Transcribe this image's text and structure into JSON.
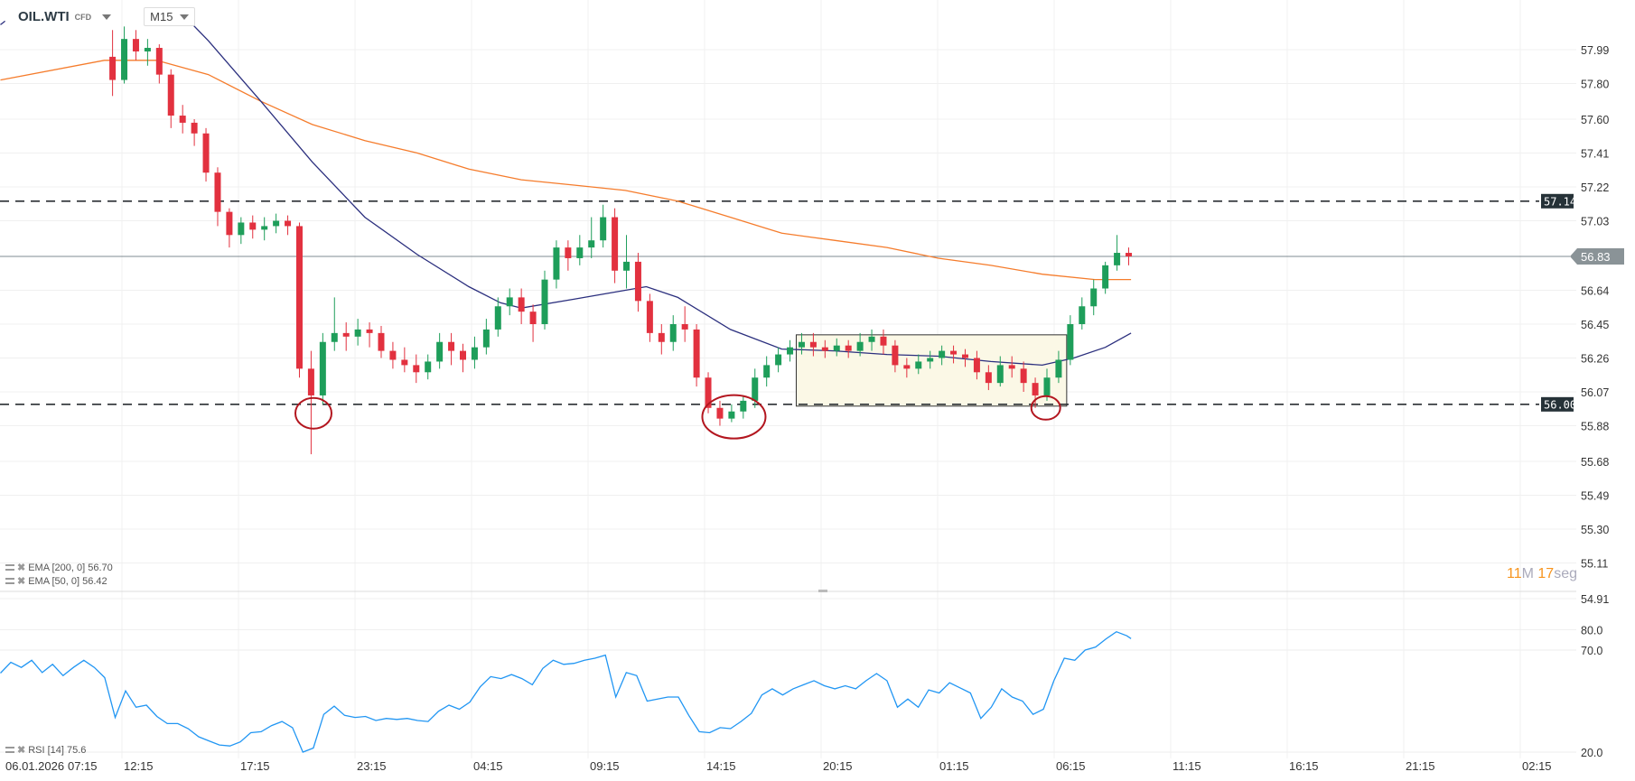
{
  "header": {
    "symbol": "OIL.WTI",
    "instrument_type": "CFD",
    "timeframe": "M15"
  },
  "legend": {
    "ema200": {
      "label": "EMA [200, 0] 56.70",
      "color": "#f57c2c"
    },
    "ema50": {
      "label": "EMA [50, 0] 56.42",
      "color": "#2b2f7e"
    },
    "rsi": {
      "label": "RSI [14] 75.6",
      "color": "#2196f3"
    }
  },
  "timer": {
    "minutes": "11",
    "minutes_unit": "M",
    "seconds": "17",
    "seconds_unit": "seg"
  },
  "colors": {
    "up": "#1e9e5a",
    "down": "#e2313f",
    "annotation": "#b3161f",
    "box_fill": "#fbf8e6"
  },
  "chart_data": [
    {
      "type": "candlestick",
      "title": "",
      "price_axis_ticks": [
        "57.99",
        "57.80",
        "57.60",
        "57.41",
        "57.22",
        "57.03",
        "56.64",
        "56.45",
        "56.26",
        "56.07",
        "55.88",
        "55.68",
        "55.49",
        "55.30",
        "55.11",
        "54.91"
      ],
      "time_axis_ticks": [
        "06.01.2026",
        "07:15",
        "12:15",
        "17:15",
        "23:15",
        "04:15",
        "09:15",
        "14:15",
        "20:15",
        "01:15",
        "06:15",
        "11:15",
        "16:15",
        "21:15",
        "02:15"
      ],
      "ylim": [
        54.91,
        58.22
      ],
      "grid": true,
      "levels": [
        {
          "value": 57.14,
          "label": "57.14",
          "style": "dashed"
        },
        {
          "value": 56.0,
          "label": "56.00",
          "style": "dashed"
        }
      ],
      "current_price": {
        "value": 56.83,
        "label": "56.83"
      },
      "range_box": {
        "from_bar": 59,
        "to_bar": 82,
        "high": 56.39,
        "low": 55.99
      },
      "candles_ohlc": [
        [
          57.95,
          58.1,
          57.73,
          57.82
        ],
        [
          57.82,
          58.12,
          57.8,
          58.05
        ],
        [
          58.05,
          58.1,
          57.93,
          57.98
        ],
        [
          57.98,
          58.05,
          57.9,
          58.0
        ],
        [
          58.0,
          58.02,
          57.8,
          57.85
        ],
        [
          57.85,
          57.88,
          57.55,
          57.62
        ],
        [
          57.62,
          57.68,
          57.52,
          57.58
        ],
        [
          57.58,
          57.6,
          57.45,
          57.52
        ],
        [
          57.52,
          57.55,
          57.25,
          57.3
        ],
        [
          57.3,
          57.33,
          57.0,
          57.08
        ],
        [
          57.08,
          57.1,
          56.88,
          56.95
        ],
        [
          56.95,
          57.05,
          56.9,
          57.02
        ],
        [
          57.02,
          57.06,
          56.93,
          56.98
        ],
        [
          56.98,
          57.05,
          56.92,
          57.0
        ],
        [
          57.0,
          57.07,
          56.96,
          57.03
        ],
        [
          57.03,
          57.06,
          56.95,
          57.0
        ],
        [
          57.0,
          57.02,
          56.15,
          56.2
        ],
        [
          56.2,
          56.3,
          55.72,
          56.05
        ],
        [
          56.05,
          56.4,
          56.0,
          56.35
        ],
        [
          56.35,
          56.6,
          56.3,
          56.4
        ],
        [
          56.4,
          56.46,
          56.3,
          56.38
        ],
        [
          56.38,
          56.48,
          56.33,
          56.42
        ],
        [
          56.42,
          56.46,
          56.32,
          56.4
        ],
        [
          56.4,
          56.44,
          56.26,
          56.3
        ],
        [
          56.3,
          56.35,
          56.2,
          56.25
        ],
        [
          56.25,
          56.32,
          56.18,
          56.22
        ],
        [
          56.22,
          56.28,
          56.12,
          56.18
        ],
        [
          56.18,
          56.28,
          56.14,
          56.24
        ],
        [
          56.24,
          56.4,
          56.2,
          56.35
        ],
        [
          56.35,
          56.4,
          56.22,
          56.3
        ],
        [
          56.3,
          56.34,
          56.18,
          56.25
        ],
        [
          56.25,
          56.38,
          56.2,
          56.32
        ],
        [
          56.32,
          56.48,
          56.28,
          56.42
        ],
        [
          56.42,
          56.6,
          56.38,
          56.55
        ],
        [
          56.55,
          56.65,
          56.5,
          56.6
        ],
        [
          56.6,
          56.65,
          56.45,
          56.52
        ],
        [
          56.52,
          56.56,
          56.35,
          56.45
        ],
        [
          56.45,
          56.75,
          56.42,
          56.7
        ],
        [
          56.7,
          56.92,
          56.65,
          56.88
        ],
        [
          56.88,
          56.92,
          56.75,
          56.82
        ],
        [
          56.82,
          56.95,
          56.78,
          56.88
        ],
        [
          56.88,
          57.05,
          56.82,
          56.92
        ],
        [
          56.92,
          57.12,
          56.88,
          57.05
        ],
        [
          57.05,
          57.1,
          56.68,
          56.75
        ],
        [
          56.75,
          56.95,
          56.65,
          56.8
        ],
        [
          56.8,
          56.85,
          56.52,
          56.58
        ],
        [
          56.58,
          56.62,
          56.35,
          56.4
        ],
        [
          56.4,
          56.45,
          56.28,
          56.35
        ],
        [
          56.35,
          56.5,
          56.3,
          56.45
        ],
        [
          56.45,
          56.55,
          56.35,
          56.42
        ],
        [
          56.42,
          56.45,
          56.1,
          56.15
        ],
        [
          56.15,
          56.18,
          55.95,
          55.98
        ],
        [
          55.98,
          56.02,
          55.88,
          55.92
        ],
        [
          55.92,
          56.0,
          55.9,
          55.96
        ],
        [
          55.96,
          56.05,
          55.92,
          56.02
        ],
        [
          56.02,
          56.2,
          55.98,
          56.15
        ],
        [
          56.15,
          56.27,
          56.1,
          56.22
        ],
        [
          56.22,
          56.32,
          56.18,
          56.28
        ],
        [
          56.28,
          56.36,
          56.24,
          56.32
        ],
        [
          56.32,
          56.4,
          56.28,
          56.35
        ],
        [
          56.35,
          56.4,
          56.27,
          56.32
        ],
        [
          56.32,
          56.36,
          56.26,
          56.3
        ],
        [
          56.3,
          56.37,
          56.27,
          56.33
        ],
        [
          56.33,
          56.36,
          56.26,
          56.3
        ],
        [
          56.3,
          56.4,
          56.27,
          56.35
        ],
        [
          56.35,
          56.42,
          56.3,
          56.38
        ],
        [
          56.38,
          56.42,
          56.28,
          56.33
        ],
        [
          56.33,
          56.36,
          56.18,
          56.22
        ],
        [
          56.22,
          56.26,
          56.15,
          56.2
        ],
        [
          56.2,
          56.28,
          56.17,
          56.24
        ],
        [
          56.24,
          56.3,
          56.2,
          56.26
        ],
        [
          56.26,
          56.33,
          56.22,
          56.3
        ],
        [
          56.3,
          56.33,
          56.23,
          56.28
        ],
        [
          56.28,
          56.31,
          56.21,
          56.26
        ],
        [
          56.26,
          56.3,
          56.14,
          56.18
        ],
        [
          56.18,
          56.22,
          56.08,
          56.12
        ],
        [
          56.12,
          56.27,
          56.1,
          56.22
        ],
        [
          56.22,
          56.27,
          56.15,
          56.2
        ],
        [
          56.2,
          56.24,
          56.07,
          56.12
        ],
        [
          56.12,
          56.15,
          55.98,
          56.05
        ],
        [
          56.05,
          56.2,
          56.02,
          56.15
        ],
        [
          56.15,
          56.3,
          56.12,
          56.25
        ],
        [
          56.25,
          56.5,
          56.22,
          56.45
        ],
        [
          56.45,
          56.6,
          56.42,
          56.55
        ],
        [
          56.55,
          56.7,
          56.5,
          56.65
        ],
        [
          56.65,
          56.8,
          56.62,
          56.78
        ],
        [
          56.78,
          56.95,
          56.75,
          56.85
        ],
        [
          56.85,
          56.88,
          56.78,
          56.83
        ]
      ],
      "ema200_points_bar_value": [
        [
          -9.6,
          57.82
        ],
        [
          -0.7,
          57.93
        ],
        [
          3.75,
          57.93
        ],
        [
          8.2,
          57.85
        ],
        [
          12.7,
          57.7
        ],
        [
          17.1,
          57.57
        ],
        [
          21.6,
          57.48
        ],
        [
          26.1,
          57.41
        ],
        [
          30.5,
          57.32
        ],
        [
          35,
          57.26
        ],
        [
          39.5,
          57.23
        ],
        [
          43.9,
          57.2
        ],
        [
          48.4,
          57.14
        ],
        [
          52.9,
          57.05
        ],
        [
          57.3,
          56.96
        ],
        [
          61.8,
          56.92
        ],
        [
          66.3,
          56.88
        ],
        [
          70.7,
          56.82
        ],
        [
          75.2,
          56.78
        ],
        [
          79.6,
          56.73
        ],
        [
          84.1,
          56.7
        ],
        [
          87.2,
          56.7
        ]
      ],
      "ema50_points_bar_value": [
        [
          -9.6,
          58.13
        ],
        [
          -9.2,
          58.15
        ],
        [
          null,
          null
        ],
        [
          5.98,
          58.19
        ],
        [
          8.2,
          58.04
        ],
        [
          12.7,
          57.7
        ],
        [
          17.1,
          57.36
        ],
        [
          21.6,
          57.05
        ],
        [
          26.1,
          56.84
        ],
        [
          30.5,
          56.66
        ],
        [
          33.2,
          56.57
        ],
        [
          35,
          56.54
        ],
        [
          39.5,
          56.59
        ],
        [
          43.9,
          56.64
        ],
        [
          45.7,
          56.66
        ],
        [
          48.4,
          56.6
        ],
        [
          52.9,
          56.42
        ],
        [
          57.3,
          56.31
        ],
        [
          61.8,
          56.3
        ],
        [
          66.3,
          56.28
        ],
        [
          70.7,
          56.27
        ],
        [
          75.2,
          56.24
        ],
        [
          79.6,
          56.22
        ],
        [
          82.3,
          56.26
        ],
        [
          85,
          56.32
        ],
        [
          87.2,
          56.4
        ]
      ]
    },
    {
      "type": "line",
      "title": "",
      "series_name": "RSI [14]",
      "ylim": [
        15,
        85
      ],
      "y_ticks": [
        "80.0",
        "70.0",
        "20.0"
      ],
      "grid": true,
      "start_bar": -9.6,
      "bar_step": 0.893,
      "values": [
        58.7,
        64,
        61.5,
        65,
        59,
        63,
        57.5,
        61.5,
        65,
        61.5,
        56.5,
        37,
        50,
        42,
        43,
        37.5,
        34,
        34,
        31.5,
        27.5,
        25.5,
        23.5,
        23,
        25,
        29.5,
        30,
        33,
        35,
        32,
        20,
        22,
        38.5,
        42.5,
        38,
        37,
        37.5,
        35.5,
        36.5,
        36,
        36.5,
        35.5,
        35,
        40,
        43,
        41,
        44.5,
        52,
        57,
        56,
        58,
        56,
        53,
        61,
        65,
        63,
        63.5,
        65,
        66,
        67.5,
        47,
        59,
        57.5,
        45,
        46,
        47,
        47,
        38,
        30,
        29.5,
        32,
        31.5,
        35,
        39,
        48,
        51,
        48,
        51,
        53,
        55,
        52.5,
        51,
        52.5,
        51,
        55,
        58.5,
        55,
        42,
        46,
        42,
        50.5,
        49,
        54,
        51.5,
        49,
        36.5,
        42,
        51,
        47,
        45,
        38.5,
        41,
        55,
        66,
        65,
        70,
        71.5,
        75.5,
        79,
        77,
        75.6
      ]
    }
  ]
}
